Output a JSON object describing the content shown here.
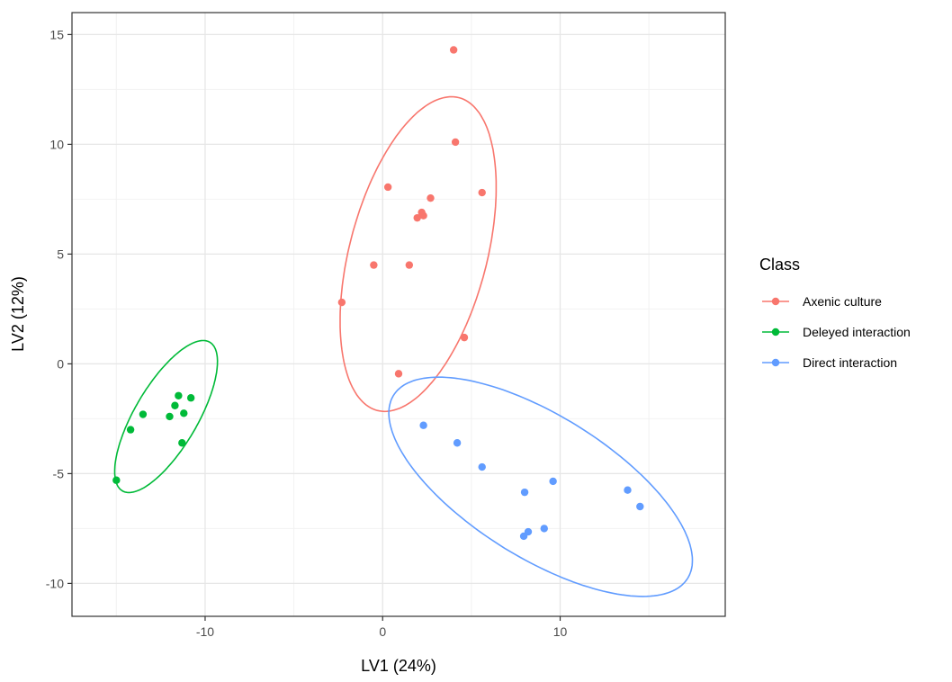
{
  "chart_data": {
    "type": "scatter",
    "xlabel": "LV1 (24%)",
    "ylabel": "LV2 (12%)",
    "xlim": [
      -17.5,
      19.3
    ],
    "ylim": [
      -11.5,
      16.0
    ],
    "x_ticks": [
      -10,
      0,
      10
    ],
    "x_tick_labels": [
      "-10",
      "0",
      "10"
    ],
    "y_ticks": [
      -10,
      -5,
      0,
      5,
      10,
      15
    ],
    "y_tick_labels": [
      "-10",
      "-5",
      "0",
      "5",
      "10",
      "15"
    ],
    "grid": true,
    "legend_title": "Class",
    "legend_position": "right",
    "series": [
      {
        "name": "Axenic culture",
        "color": "#F8766D",
        "points": [
          [
            4.0,
            14.3
          ],
          [
            4.1,
            10.1
          ],
          [
            0.3,
            8.05
          ],
          [
            5.6,
            7.8
          ],
          [
            2.7,
            7.55
          ],
          [
            2.2,
            6.9
          ],
          [
            1.95,
            6.65
          ],
          [
            2.3,
            6.75
          ],
          [
            -0.5,
            4.5
          ],
          [
            1.5,
            4.5
          ],
          [
            -2.3,
            2.8
          ],
          [
            4.6,
            1.2
          ],
          [
            0.9,
            -0.45
          ]
        ],
        "ellipse": {
          "cx": 2.0,
          "cy": 5.0,
          "rx": 7.5,
          "ry": 3.8,
          "angle_deg": 70
        }
      },
      {
        "name": "Deleyed interaction",
        "color": "#00BA38",
        "points": [
          [
            -11.5,
            -1.45
          ],
          [
            -10.8,
            -1.55
          ],
          [
            -11.7,
            -1.9
          ],
          [
            -13.5,
            -2.3
          ],
          [
            -11.2,
            -2.25
          ],
          [
            -12.0,
            -2.4
          ],
          [
            -14.2,
            -3.0
          ],
          [
            -11.3,
            -3.6
          ],
          [
            -15.0,
            -5.3
          ]
        ],
        "ellipse": {
          "cx": -12.2,
          "cy": -2.4,
          "rx": 4.2,
          "ry": 1.65,
          "angle_deg": 52
        }
      },
      {
        "name": "Direct interaction",
        "color": "#619CFF",
        "points": [
          [
            2.3,
            -2.8
          ],
          [
            4.2,
            -3.6
          ],
          [
            5.6,
            -4.7
          ],
          [
            8.0,
            -5.85
          ],
          [
            9.6,
            -5.35
          ],
          [
            13.8,
            -5.75
          ],
          [
            14.5,
            -6.5
          ],
          [
            9.1,
            -7.5
          ],
          [
            8.2,
            -7.65
          ],
          [
            7.95,
            -7.85
          ]
        ],
        "ellipse": {
          "cx": 8.9,
          "cy": -5.6,
          "rx": 9.3,
          "ry": 3.4,
          "angle_deg": -25
        }
      }
    ]
  }
}
